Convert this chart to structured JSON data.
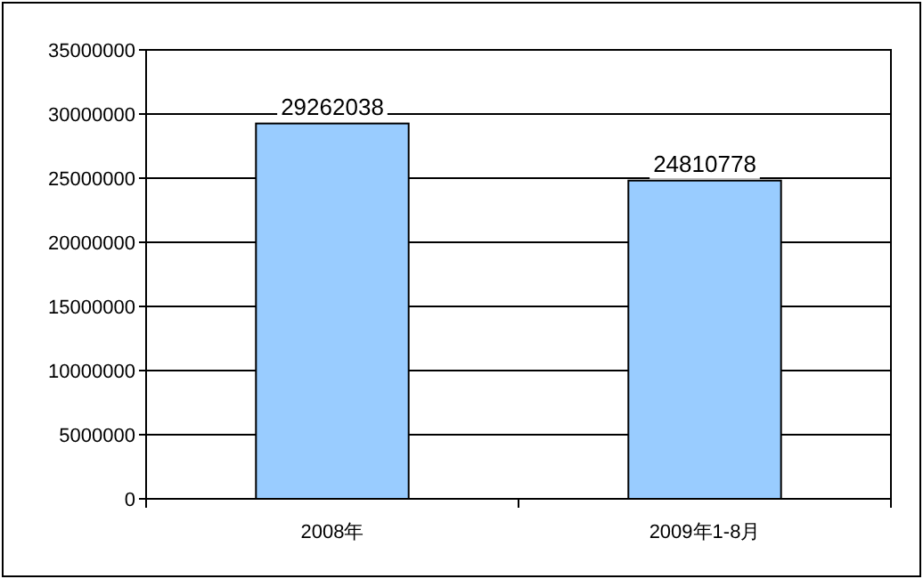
{
  "chart_data": {
    "type": "bar",
    "categories": [
      "2008年",
      "2009年1-8月"
    ],
    "values": [
      29262038,
      24810778
    ],
    "color": "#99ccff",
    "ylim": [
      0,
      35000000
    ],
    "yticks": [
      0,
      5000000,
      10000000,
      15000000,
      20000000,
      25000000,
      30000000,
      35000000
    ],
    "grid": "y",
    "data_labels": true
  }
}
